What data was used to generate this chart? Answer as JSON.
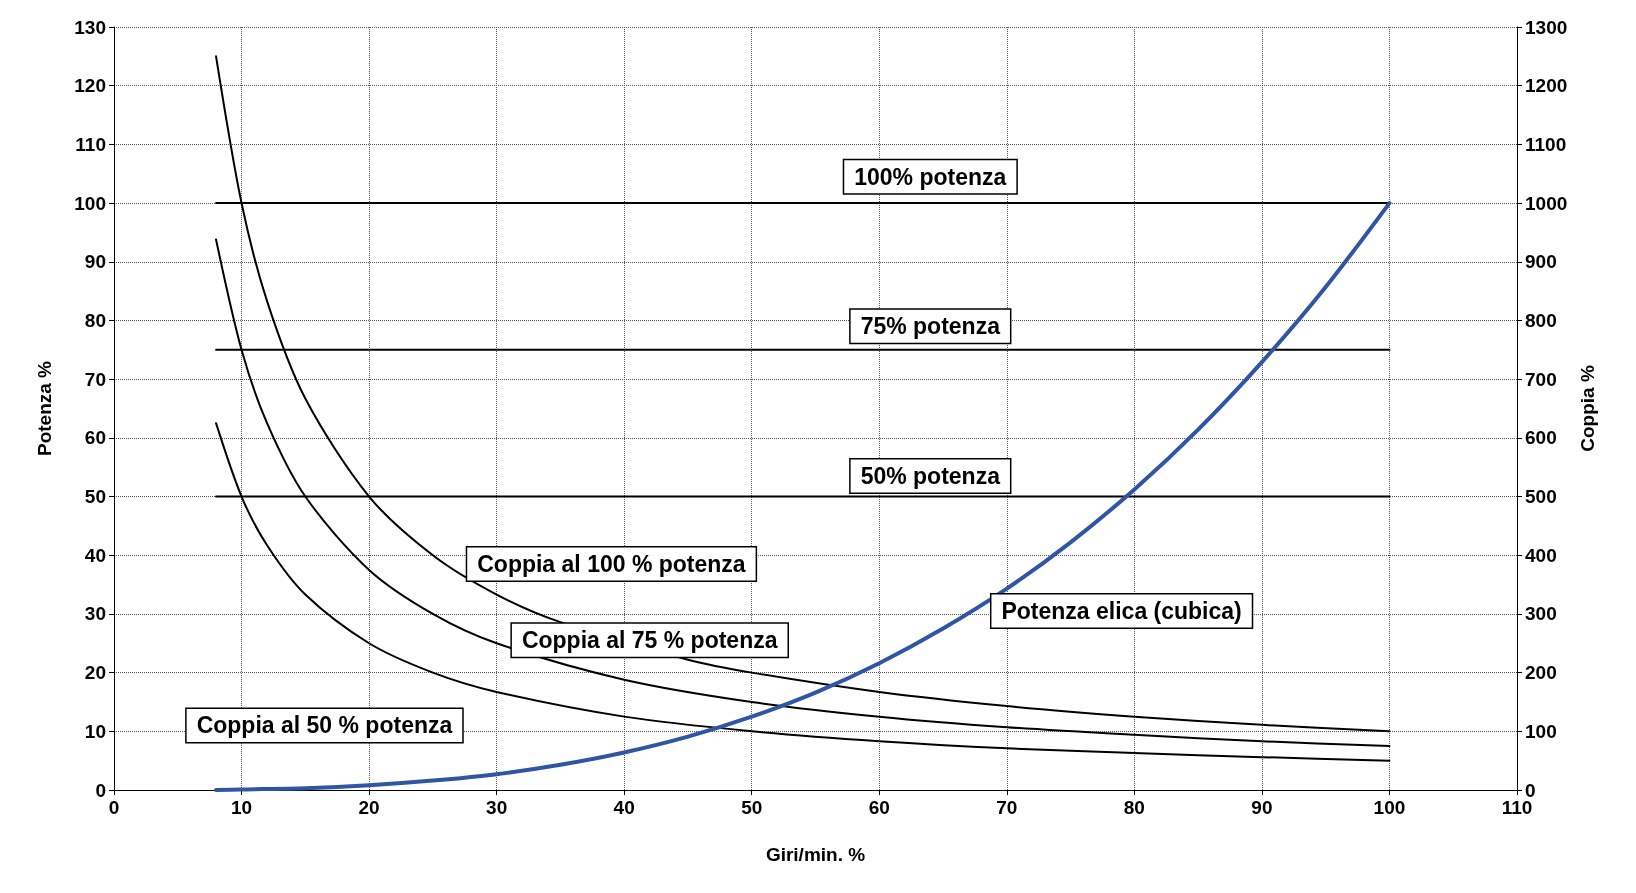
{
  "chart_data": {
    "type": "line",
    "xlabel": "Giri/min. %",
    "ylabel": "Potenza %",
    "y2label": "Coppia %",
    "xlim": [
      0,
      110
    ],
    "xticks": [
      0,
      10,
      20,
      30,
      40,
      50,
      60,
      70,
      80,
      90,
      100,
      110
    ],
    "ylim": [
      0,
      130
    ],
    "yticks": [
      0,
      10,
      20,
      30,
      40,
      50,
      60,
      70,
      80,
      90,
      100,
      110,
      120,
      130
    ],
    "y2lim": [
      0,
      1300
    ],
    "y2ticks": [
      0,
      100,
      200,
      300,
      400,
      500,
      600,
      700,
      800,
      900,
      1000,
      1100,
      1200,
      1300
    ],
    "grid": true,
    "legend": false,
    "marker": "none",
    "line_style": "solid",
    "series": [
      {
        "name": "100% potenza",
        "color": "#000000",
        "x": [
          8,
          100
        ],
        "values": [
          100,
          100
        ]
      },
      {
        "name": "75% potenza",
        "color": "#000000",
        "x": [
          8,
          100
        ],
        "values": [
          75,
          75
        ]
      },
      {
        "name": "50% potenza",
        "color": "#000000",
        "x": [
          8,
          100
        ],
        "values": [
          50,
          50
        ]
      },
      {
        "name": "Coppia al 100 % potenza",
        "color": "#000000",
        "axis": "y2",
        "x": [
          8,
          10,
          12,
          15,
          20,
          25,
          30,
          35,
          45,
          50,
          60,
          70,
          80,
          90,
          100
        ],
        "values": [
          1250,
          1000,
          833,
          667,
          500,
          400,
          333,
          286,
          222,
          200,
          167,
          143,
          125,
          111,
          100
        ]
      },
      {
        "name": "Coppia al 75 % potenza",
        "color": "#000000",
        "axis": "y2",
        "x": [
          8,
          10,
          12,
          15,
          20,
          25,
          30,
          40,
          50,
          60,
          70,
          80,
          90,
          100
        ],
        "values": [
          938,
          750,
          625,
          500,
          375,
          300,
          250,
          188,
          150,
          125,
          107,
          94,
          83,
          75
        ]
      },
      {
        "name": "Coppia al 50 % potenza",
        "color": "#000000",
        "axis": "y2",
        "x": [
          8,
          10,
          12,
          15,
          20,
          25,
          30,
          40,
          50,
          60,
          70,
          80,
          90,
          100
        ],
        "values": [
          625,
          500,
          417,
          333,
          250,
          200,
          167,
          125,
          100,
          83,
          71,
          63,
          56,
          50
        ]
      },
      {
        "name": "Potenza elica (cubica)",
        "color": "#2f55a4",
        "x": [
          8,
          10,
          15,
          20,
          25,
          30,
          35,
          40,
          45,
          50,
          55,
          60,
          65,
          70,
          75,
          80,
          85,
          90,
          95,
          100
        ],
        "values": [
          0,
          0.1,
          0.3,
          0.8,
          1.6,
          2.7,
          4.3,
          6.4,
          9.1,
          12.5,
          16.6,
          21.6,
          27.5,
          34.3,
          42.2,
          51.2,
          61.4,
          72.9,
          85.7,
          100
        ]
      }
    ]
  }
}
